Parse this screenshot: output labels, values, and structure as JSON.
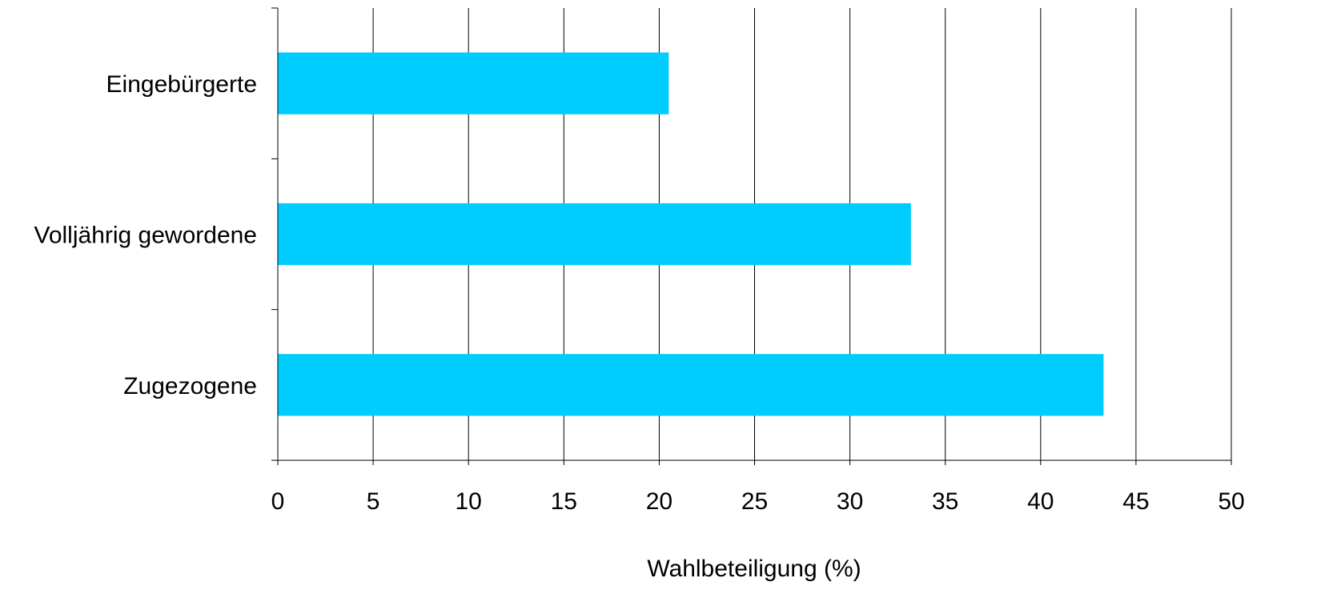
{
  "chart_data": {
    "type": "bar",
    "orientation": "horizontal",
    "categories": [
      "Eingebürgerte",
      "Volljährig gewordene",
      "Zugezogene"
    ],
    "values": [
      20.5,
      33.2,
      43.3
    ],
    "xlabel": "Wahlbeteiligung (%)",
    "ylabel": "",
    "xlim": [
      0,
      50
    ],
    "xticks": [
      0,
      5,
      10,
      15,
      20,
      25,
      30,
      35,
      40,
      45,
      50
    ],
    "xtick_labels": [
      "0",
      "5",
      "10",
      "15",
      "20",
      "25",
      "30",
      "35",
      "40",
      "45",
      "50"
    ],
    "grid": "vertical",
    "legend": "none",
    "colors": {
      "bar": "#00CCFF",
      "grid": "#000000",
      "text": "#000000"
    }
  }
}
